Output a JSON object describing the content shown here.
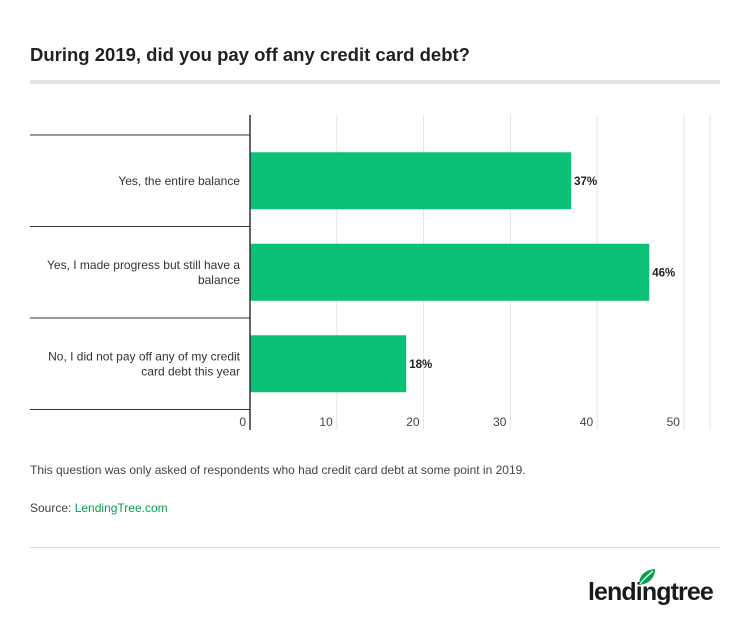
{
  "header": {
    "title": "During 2019, did you pay off any credit card debt?"
  },
  "chart_data": {
    "type": "bar",
    "orientation": "horizontal",
    "categories": [
      "Yes, the entire balance",
      "Yes, I made progress but still have a balance",
      "No, I did not pay off any of my credit card debt this year"
    ],
    "category_lines": [
      [
        "Yes, the entire balance"
      ],
      [
        "Yes, I made progress but still have a",
        "balance"
      ],
      [
        "No, I did not pay off any of my credit",
        "card debt this year"
      ]
    ],
    "values": [
      37,
      46,
      18
    ],
    "data_labels": [
      "37%",
      "46%",
      "18%"
    ],
    "xlim": [
      0,
      53
    ],
    "ticks": [
      0,
      10,
      20,
      30,
      40,
      50
    ],
    "tick_labels": [
      "0",
      "10",
      "20",
      "30",
      "40",
      "50"
    ],
    "grid": true,
    "bar_color": "#0bc176"
  },
  "footer": {
    "note": "This question was only asked of respondents who had credit card debt at some point in 2019.",
    "source_label": "Source: ",
    "source_link": "LendingTree.com",
    "logo_text": "lendingtree",
    "brand_color": "#08a04b"
  }
}
